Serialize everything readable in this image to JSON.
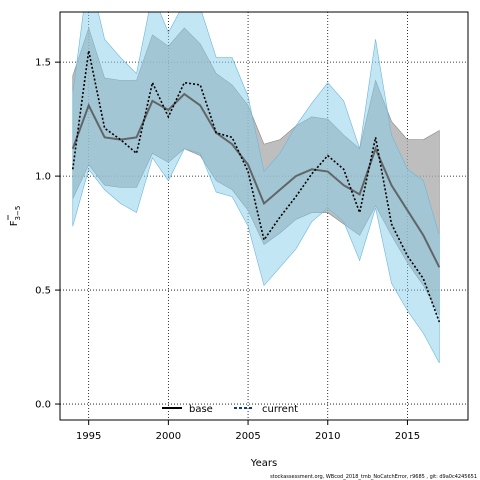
{
  "chart_data": {
    "type": "line",
    "title": "",
    "xlabel": "Years",
    "ylabel_main": "F",
    "ylabel_sub": "3−5",
    "xlim": [
      1993.2,
      2018.8
    ],
    "ylim": [
      -0.07,
      1.72
    ],
    "x_ticks": [
      1995,
      2000,
      2005,
      2010,
      2015
    ],
    "x_tick_labels": [
      "1995",
      "2000",
      "2005",
      "2010",
      "2015"
    ],
    "y_ticks": [
      0.0,
      0.5,
      1.0,
      1.5
    ],
    "y_tick_labels": [
      "0.0",
      "0.5",
      "1.0",
      "1.5"
    ],
    "grid": true,
    "legend_position": "bottom-center",
    "x": [
      1994,
      1995,
      1996,
      1997,
      1998,
      1999,
      2000,
      2001,
      2002,
      2003,
      2004,
      2005,
      2006,
      2007,
      2008,
      2009,
      2010,
      2011,
      2012,
      2013,
      2014,
      2015,
      2016,
      2017
    ],
    "series": [
      {
        "name": "base",
        "color": "#555555",
        "band_color": "#a8a8a8",
        "values": [
          1.12,
          1.31,
          1.17,
          1.16,
          1.17,
          1.33,
          1.29,
          1.36,
          1.31,
          1.19,
          1.14,
          1.05,
          0.88,
          0.94,
          1.0,
          1.03,
          1.02,
          0.96,
          0.92,
          1.12,
          0.96,
          0.85,
          0.74,
          0.6
        ],
        "lower": [
          0.9,
          1.05,
          0.96,
          0.95,
          0.95,
          1.1,
          1.06,
          1.12,
          1.09,
          0.98,
          0.94,
          0.85,
          0.7,
          0.75,
          0.81,
          0.84,
          0.84,
          0.79,
          0.74,
          0.87,
          0.74,
          0.62,
          0.52,
          0.39
        ],
        "upper": [
          1.44,
          1.65,
          1.43,
          1.42,
          1.42,
          1.62,
          1.57,
          1.65,
          1.58,
          1.45,
          1.4,
          1.31,
          1.14,
          1.16,
          1.22,
          1.26,
          1.25,
          1.18,
          1.12,
          1.42,
          1.24,
          1.16,
          1.16,
          1.2
        ]
      },
      {
        "name": "current",
        "color": "#0a3b8c",
        "band_color": "#87ceeb",
        "values": [
          1.03,
          1.55,
          1.21,
          1.16,
          1.1,
          1.41,
          1.26,
          1.41,
          1.4,
          1.19,
          1.17,
          1.02,
          0.72,
          0.82,
          0.91,
          1.01,
          1.09,
          1.03,
          0.84,
          1.17,
          0.79,
          0.65,
          0.55,
          0.36
        ],
        "lower": [
          0.78,
          1.03,
          0.94,
          0.88,
          0.84,
          1.08,
          0.98,
          1.12,
          1.1,
          0.93,
          0.91,
          0.78,
          0.52,
          0.6,
          0.68,
          0.8,
          0.86,
          0.8,
          0.63,
          0.86,
          0.53,
          0.41,
          0.31,
          0.18
        ],
        "upper": [
          1.36,
          1.9,
          1.6,
          1.52,
          1.45,
          1.8,
          1.63,
          1.76,
          1.74,
          1.52,
          1.52,
          1.35,
          1.02,
          1.1,
          1.22,
          1.32,
          1.41,
          1.33,
          1.12,
          1.6,
          1.18,
          1.03,
          0.98,
          0.74
        ]
      }
    ]
  },
  "footer": "stockassessment.org, WBcod_2018_tmb_NoCatchError, r9685 , git: d9a0c4245651"
}
